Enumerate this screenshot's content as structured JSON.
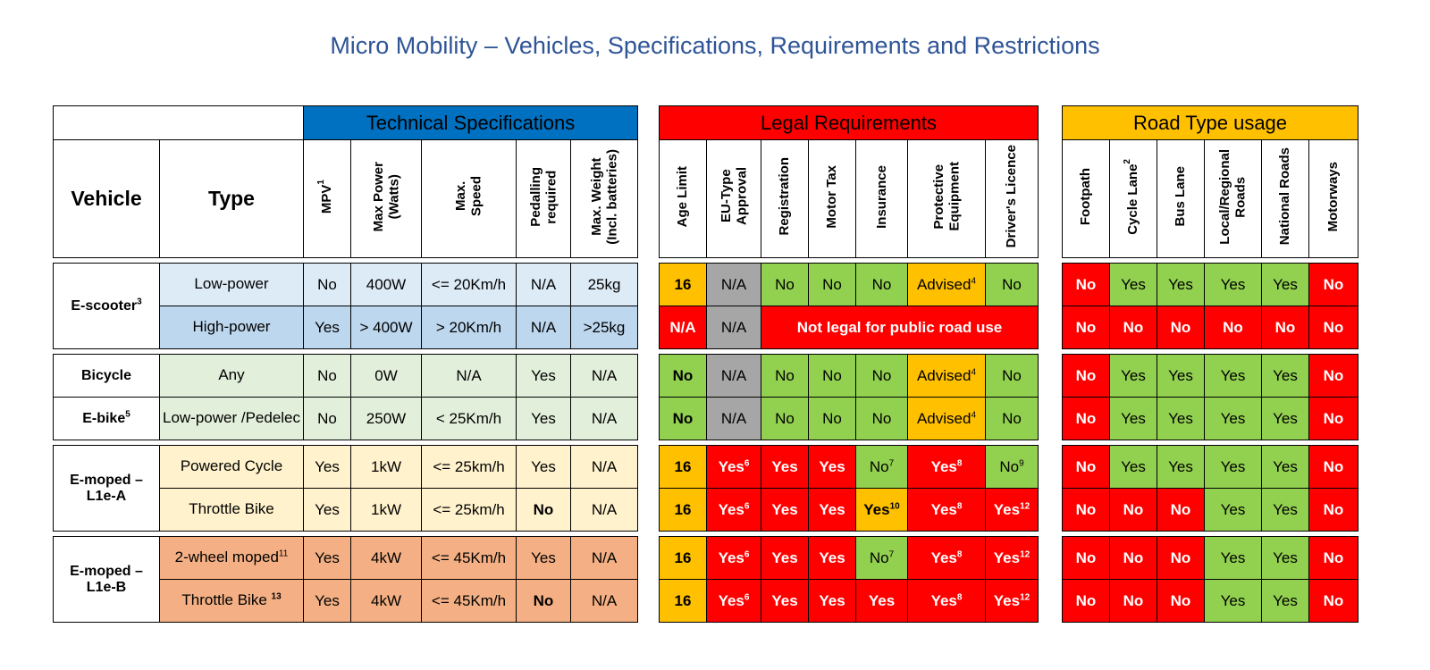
{
  "title": "Micro Mobility – Vehicles, Specifications, Requirements and Restrictions",
  "groups": {
    "technical": "Technical Specifications",
    "legal": "Legal Requirements",
    "road": "Road Type usage"
  },
  "columns": {
    "vehicle": "Vehicle",
    "type": "Type",
    "mpv": "MPV",
    "mpv_sup": "1",
    "max_power": [
      "Max Power",
      "(Watts)"
    ],
    "max_speed": [
      "Max.",
      "Speed"
    ],
    "pedalling": [
      "Pedalling",
      "required"
    ],
    "max_weight": [
      "Max. Weight",
      "(Incl. batteries)"
    ],
    "age_limit": "Age Limit",
    "eu_type": [
      "EU-Type",
      "Approval"
    ],
    "registration": "Registration",
    "motor_tax": "Motor Tax",
    "insurance": "Insurance",
    "protective": [
      "Protective",
      "Equipment"
    ],
    "licence": "Driver's Licence",
    "footpath": "Footpath",
    "cycle_lane": "Cycle Lane",
    "cycle_lane_sup": "2",
    "bus_lane": "Bus Lane",
    "local_roads": [
      "Local/Regional",
      "Roads"
    ],
    "national_roads": "National Roads",
    "motorways": "Motorways"
  },
  "vehicles": {
    "escooter": {
      "name": "E-scooter",
      "sup": "3"
    },
    "bicycle": {
      "name": "Bicycle"
    },
    "ebike": {
      "name": "E-bike",
      "sup": "5"
    },
    "emopedA": {
      "name": "E-moped – L1e-A"
    },
    "emopedB": {
      "name": "E-moped – L1e-B"
    }
  },
  "rows": {
    "es_low": {
      "type": "Low-power",
      "mpv": "No",
      "power": "400W",
      "speed": "<= 20Km/h",
      "pedal": "N/A",
      "weight": "25kg",
      "age": "16",
      "eu": "N/A",
      "reg": "No",
      "tax": "No",
      "ins": "No",
      "prot": "Advised",
      "prot_sup": "4",
      "lic": "No",
      "foot": "No",
      "cycle": "Yes",
      "bus": "Yes",
      "local": "Yes",
      "national": "Yes",
      "motorway": "No"
    },
    "es_high": {
      "type": "High-power",
      "mpv": "Yes",
      "power": "> 400W",
      "speed": "> 20Km/h",
      "pedal": "N/A",
      "weight": ">25kg",
      "age": "N/A",
      "eu": "N/A",
      "not_legal": "Not legal for public road use",
      "foot": "No",
      "cycle": "No",
      "bus": "No",
      "local": "No",
      "national": "No",
      "motorway": "No"
    },
    "bicycle": {
      "type": "Any",
      "mpv": "No",
      "power": "0W",
      "speed": "N/A",
      "pedal": "Yes",
      "weight": "N/A",
      "age": "No",
      "eu": "N/A",
      "reg": "No",
      "tax": "No",
      "ins": "No",
      "prot": "Advised",
      "prot_sup": "4",
      "lic": "No",
      "foot": "No",
      "cycle": "Yes",
      "bus": "Yes",
      "local": "Yes",
      "national": "Yes",
      "motorway": "No"
    },
    "ebike": {
      "type": "Low-power /Pedelec",
      "mpv": "No",
      "power": "250W",
      "speed": "< 25Km/h",
      "pedal": "Yes",
      "weight": "N/A",
      "age": "No",
      "eu": "N/A",
      "reg": "No",
      "tax": "No",
      "ins": "No",
      "prot": "Advised",
      "prot_sup": "4",
      "lic": "No",
      "foot": "No",
      "cycle": "Yes",
      "bus": "Yes",
      "local": "Yes",
      "national": "Yes",
      "motorway": "No"
    },
    "ma_pc": {
      "type": "Powered Cycle",
      "mpv": "Yes",
      "power": "1kW",
      "speed": "<= 25km/h",
      "pedal": "Yes",
      "weight": "N/A",
      "age": "16",
      "eu": "Yes",
      "eu_sup": "6",
      "reg": "Yes",
      "tax": "Yes",
      "ins": "No",
      "ins_sup": "7",
      "prot": "Yes",
      "prot_sup": "8",
      "lic": "No",
      "lic_sup": "9",
      "foot": "No",
      "cycle": "Yes",
      "bus": "Yes",
      "local": "Yes",
      "national": "Yes",
      "motorway": "No"
    },
    "ma_tb": {
      "type": "Throttle Bike",
      "mpv": "Yes",
      "power": "1kW",
      "speed": "<= 25km/h",
      "pedal": "No",
      "weight": "N/A",
      "age": "16",
      "eu": "Yes",
      "eu_sup": "6",
      "reg": "Yes",
      "tax": "Yes",
      "ins": "Yes",
      "ins_sup": "10",
      "prot": "Yes",
      "prot_sup": "8",
      "lic": "Yes",
      "lic_sup": "12",
      "foot": "No",
      "cycle": "No",
      "bus": "No",
      "local": "Yes",
      "national": "Yes",
      "motorway": "No"
    },
    "mb_2w": {
      "type": "2-wheel moped",
      "type_sup": "11",
      "mpv": "Yes",
      "power": "4kW",
      "speed": "<= 45Km/h",
      "pedal": "Yes",
      "weight": "N/A",
      "age": "16",
      "eu": "Yes",
      "eu_sup": "6",
      "reg": "Yes",
      "tax": "Yes",
      "ins": "No",
      "ins_sup": "7",
      "prot": "Yes",
      "prot_sup": "8",
      "lic": "Yes",
      "lic_sup": "12",
      "foot": "No",
      "cycle": "No",
      "bus": "No",
      "local": "Yes",
      "national": "Yes",
      "motorway": "No"
    },
    "mb_tb": {
      "type": "Throttle Bike ",
      "type_sup": "13",
      "mpv": "Yes",
      "power": "4kW",
      "speed": "<= 45Km/h",
      "pedal": "No",
      "weight": "N/A",
      "age": "16",
      "eu": "Yes",
      "eu_sup": "6",
      "reg": "Yes",
      "tax": "Yes",
      "ins": "Yes",
      "prot": "Yes",
      "prot_sup": "8",
      "lic": "Yes",
      "lic_sup": "12",
      "foot": "No",
      "cycle": "No",
      "bus": "No",
      "local": "Yes",
      "national": "Yes",
      "motorway": "No"
    }
  },
  "colors": {
    "title": "#2F5597",
    "technical_header": "#0070C0",
    "legal_header": "#FF0000",
    "road_header": "#FFC000",
    "yes_green": "#92D050",
    "no_red": "#FF0000",
    "advised_amber": "#FFC000",
    "na_grey": "#A6A6A6"
  }
}
